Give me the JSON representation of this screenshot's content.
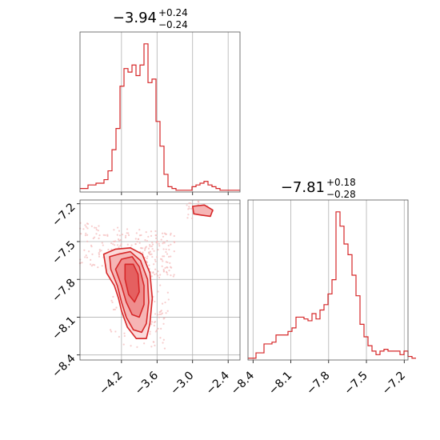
{
  "chart_data": [
    {
      "type": "histogram",
      "panel": "top-left",
      "title": {
        "value": "−3.94",
        "upper": "+0.24",
        "lower": "−0.24"
      },
      "xlim": [
        -4.9,
        -2.2
      ],
      "grid": true,
      "xticks": [
        -4.2,
        -3.6,
        -3.0,
        -2.4
      ],
      "color": "#d62728",
      "bins": {
        "start": -4.9,
        "width": 0.0675,
        "counts": [
          2,
          2,
          4,
          4,
          5,
          5,
          7,
          12,
          24,
          36,
          60,
          70,
          68,
          72,
          66,
          72,
          84,
          62,
          64,
          40,
          26,
          10,
          3,
          2,
          1,
          1,
          1,
          1,
          3,
          4,
          5,
          6,
          4,
          3,
          2,
          1,
          1,
          1,
          1,
          1
        ]
      }
    },
    {
      "type": "histogram",
      "panel": "bottom-right",
      "title": {
        "value": "−7.81",
        "upper": "+0.18",
        "lower": "−0.28"
      },
      "xlim": [
        -8.44,
        -7.17
      ],
      "grid": true,
      "xticks": [
        -8.4,
        -8.1,
        -7.8,
        -7.5,
        -7.2
      ],
      "xtick_labels": [
        "−8.4",
        "−8.1",
        "−7.8",
        "−7.5",
        "−7.2"
      ],
      "color": "#d62728",
      "bins": {
        "start": -8.44,
        "width": 0.03175,
        "counts": [
          2,
          2,
          8,
          8,
          18,
          18,
          20,
          28,
          28,
          28,
          32,
          36,
          48,
          48,
          46,
          44,
          52,
          46,
          56,
          62,
          74,
          90,
          166,
          150,
          130,
          118,
          95,
          72,
          40,
          26,
          16,
          10,
          6,
          10,
          12,
          10,
          10,
          10,
          6,
          10,
          4,
          2
        ]
      }
    },
    {
      "type": "contour",
      "panel": "bottom-left",
      "xlim": [
        -4.9,
        -2.2
      ],
      "ylim": [
        -8.44,
        -7.17
      ],
      "grid": true,
      "xticks": [
        -4.2,
        -3.6,
        -3.0,
        -2.4
      ],
      "xtick_labels": [
        "−4.2",
        "−3.6",
        "−3.0",
        "−2.4"
      ],
      "yticks": [
        -7.2,
        -7.5,
        -7.8,
        -8.1,
        -8.4
      ],
      "ytick_labels": [
        "−7.2",
        "−7.5",
        "−7.8",
        "−8.1",
        "−8.4"
      ],
      "color": "#d62728",
      "main_contour_levels": [
        [
          [
            -4.3,
            -7.56
          ],
          [
            -4.05,
            -7.55
          ],
          [
            -3.85,
            -7.6
          ],
          [
            -3.72,
            -7.75
          ],
          [
            -3.68,
            -7.95
          ],
          [
            -3.72,
            -8.15
          ],
          [
            -3.78,
            -8.27
          ],
          [
            -3.95,
            -8.27
          ],
          [
            -4.1,
            -8.18
          ],
          [
            -4.2,
            -8.05
          ],
          [
            -4.25,
            -7.95
          ],
          [
            -4.32,
            -7.85
          ],
          [
            -4.45,
            -7.75
          ],
          [
            -4.5,
            -7.6
          ]
        ],
        [
          [
            -4.25,
            -7.6
          ],
          [
            -4.05,
            -7.58
          ],
          [
            -3.88,
            -7.65
          ],
          [
            -3.76,
            -7.8
          ],
          [
            -3.74,
            -7.98
          ],
          [
            -3.78,
            -8.15
          ],
          [
            -3.86,
            -8.22
          ],
          [
            -4.0,
            -8.2
          ],
          [
            -4.12,
            -8.1
          ],
          [
            -4.2,
            -7.98
          ],
          [
            -4.27,
            -7.85
          ],
          [
            -4.38,
            -7.72
          ],
          [
            -4.4,
            -7.62
          ]
        ],
        [
          [
            -4.2,
            -7.64
          ],
          [
            -4.02,
            -7.62
          ],
          [
            -3.9,
            -7.7
          ],
          [
            -3.82,
            -7.85
          ],
          [
            -3.82,
            -8.0
          ],
          [
            -3.9,
            -8.1
          ],
          [
            -4.02,
            -8.08
          ],
          [
            -4.12,
            -7.98
          ],
          [
            -4.2,
            -7.85
          ],
          [
            -4.3,
            -7.72
          ]
        ],
        [
          [
            -4.14,
            -7.68
          ],
          [
            -4.0,
            -7.68
          ],
          [
            -3.92,
            -7.76
          ],
          [
            -3.9,
            -7.9
          ],
          [
            -3.98,
            -7.98
          ],
          [
            -4.08,
            -7.92
          ],
          [
            -4.14,
            -7.8
          ]
        ]
      ],
      "secondary_contour": [
        [
          -3.0,
          -7.22
        ],
        [
          -2.8,
          -7.21
        ],
        [
          -2.66,
          -7.25
        ],
        [
          -2.7,
          -7.3
        ],
        [
          -2.85,
          -7.29
        ],
        [
          -2.98,
          -7.28
        ]
      ]
    }
  ]
}
